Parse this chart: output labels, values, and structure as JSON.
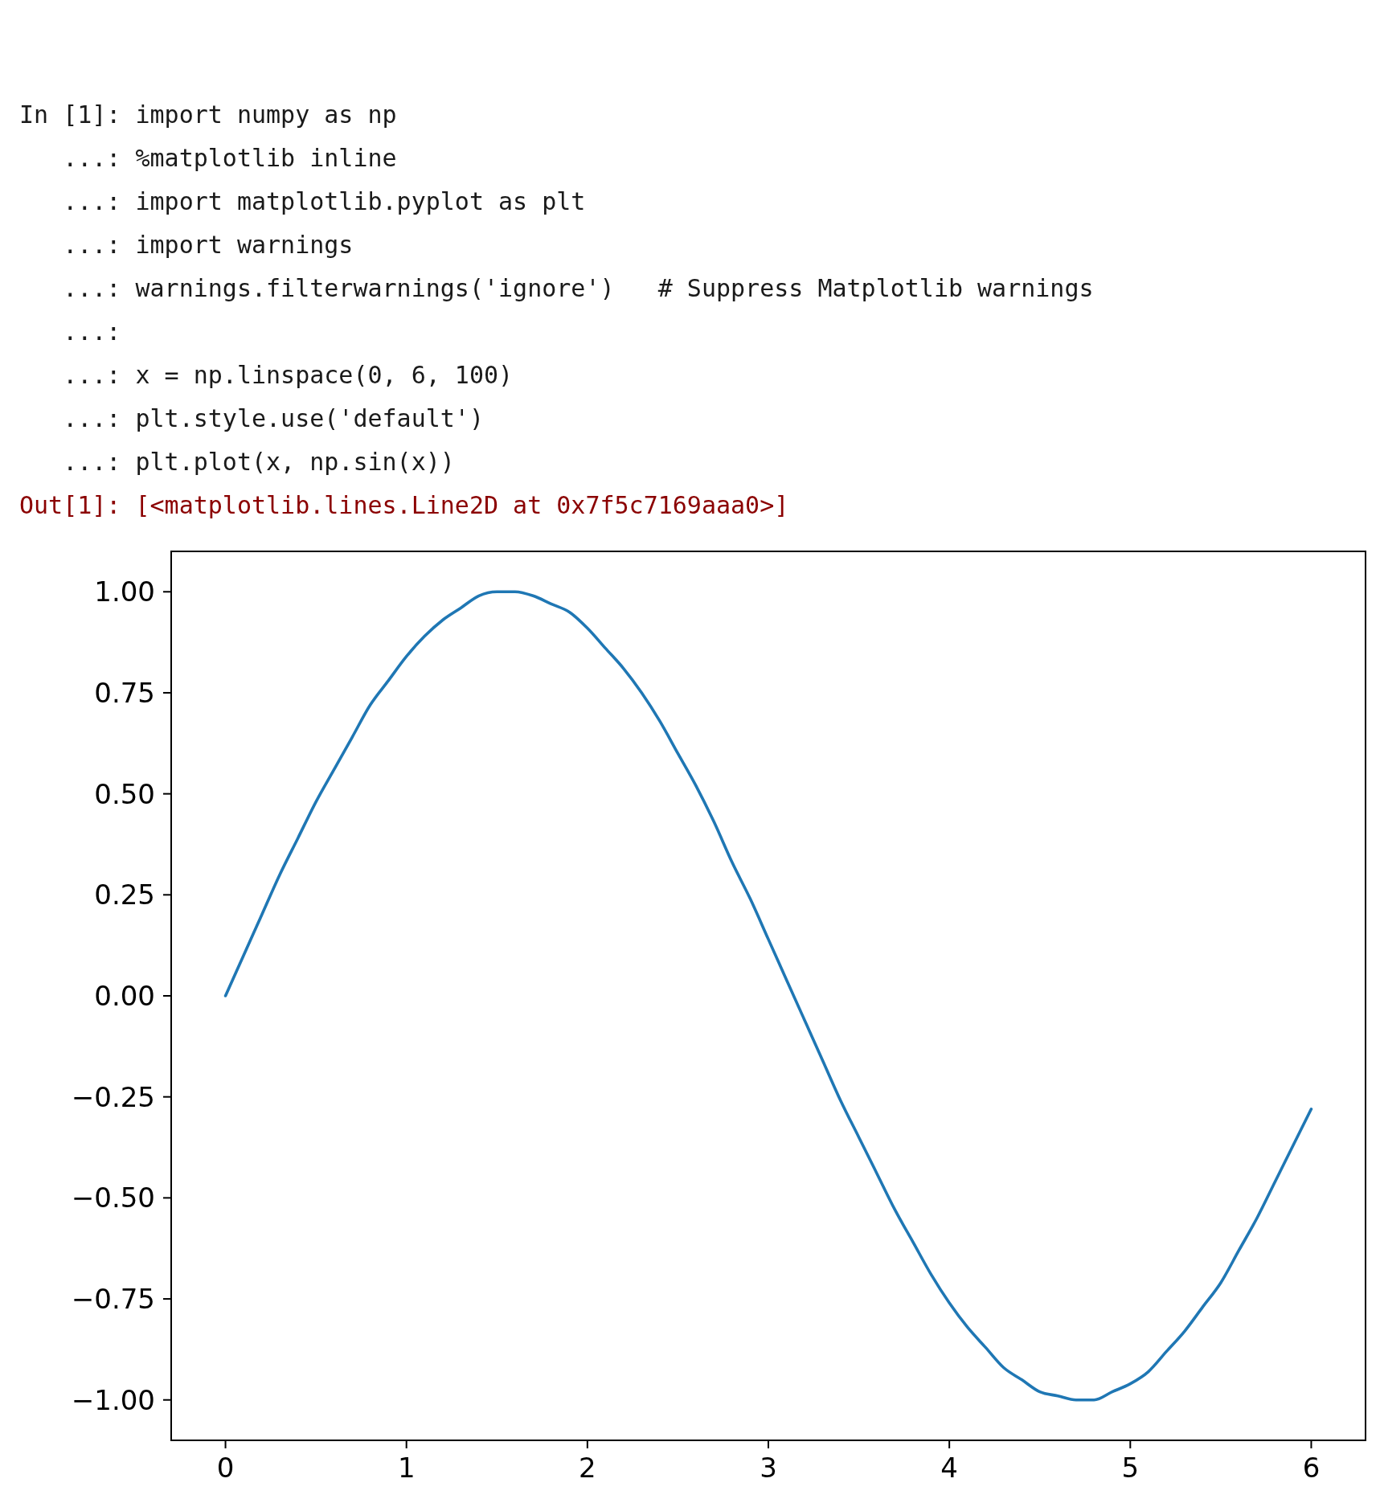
{
  "chart_data": {
    "type": "line",
    "annotations": [
      "In [1]: import numpy as np",
      "   ...: %matplotlib inline",
      "   ...: import matplotlib.pyplot as plt",
      "   ...: import warnings",
      "   ...: warnings.filterwarnings('ignore')   # Suppress Matplotlib warnings",
      "   ...:",
      "   ...: x = np.linspace(0, 6, 100)",
      "   ...: plt.style.use('default')",
      "   ...: plt.plot(x, np.sin(x))",
      "Out[1]: [<matplotlib.lines.Line2D at 0x7f5c7169aaa0>]"
    ],
    "x": [
      0,
      0.1,
      0.2,
      0.3,
      0.4,
      0.5,
      0.6,
      0.7,
      0.8,
      0.9,
      1.0,
      1.1,
      1.2,
      1.3,
      1.4,
      1.5,
      1.6,
      1.7,
      1.8,
      1.9,
      2.0,
      2.1,
      2.2,
      2.3,
      2.4,
      2.5,
      2.6,
      2.7,
      2.8,
      2.9,
      3.0,
      3.1,
      3.2,
      3.3,
      3.4,
      3.5,
      3.6,
      3.7,
      3.8,
      3.9,
      4.0,
      4.1,
      4.2,
      4.3,
      4.4,
      4.5,
      4.6,
      4.7,
      4.8,
      4.9,
      5.0,
      5.1,
      5.2,
      5.3,
      5.4,
      5.5,
      5.6,
      5.7,
      5.8,
      5.9,
      6.0
    ],
    "series": [
      {
        "color": "#1f77b4",
        "values": [
          0,
          0.1,
          0.2,
          0.3,
          0.39,
          0.48,
          0.56,
          0.64,
          0.72,
          0.78,
          0.84,
          0.89,
          0.93,
          0.96,
          0.99,
          1.0,
          1.0,
          0.99,
          0.97,
          0.95,
          0.91,
          0.86,
          0.81,
          0.75,
          0.68,
          0.6,
          0.52,
          0.43,
          0.33,
          0.24,
          0.14,
          0.04,
          -0.06,
          -0.16,
          -0.26,
          -0.35,
          -0.44,
          -0.53,
          -0.61,
          -0.69,
          -0.76,
          -0.82,
          -0.87,
          -0.92,
          -0.95,
          -0.98,
          -0.99,
          -1.0,
          -1.0,
          -0.98,
          -0.96,
          -0.93,
          -0.88,
          -0.83,
          -0.77,
          -0.71,
          -0.63,
          -0.55,
          -0.46,
          -0.37,
          -0.28
        ]
      }
    ],
    "xlim": [
      -0.3,
      6.3
    ],
    "xticks": [
      0,
      1,
      2,
      3,
      4,
      5,
      6
    ],
    "ylim": [
      -1.1,
      1.1
    ],
    "yticks": [
      {
        "value": -1,
        "label": "−1.00"
      },
      {
        "value": -0.75,
        "label": "−0.75"
      },
      {
        "value": -0.5,
        "label": "−0.50"
      },
      {
        "value": -0.25,
        "label": "−0.25"
      },
      {
        "value": 0,
        "label": "0.00"
      },
      {
        "value": 0.25,
        "label": "0.25"
      },
      {
        "value": 0.5,
        "label": "0.50"
      },
      {
        "value": 0.75,
        "label": "0.75"
      },
      {
        "value": 1,
        "label": "1.00"
      }
    ],
    "line_style": "solid"
  }
}
